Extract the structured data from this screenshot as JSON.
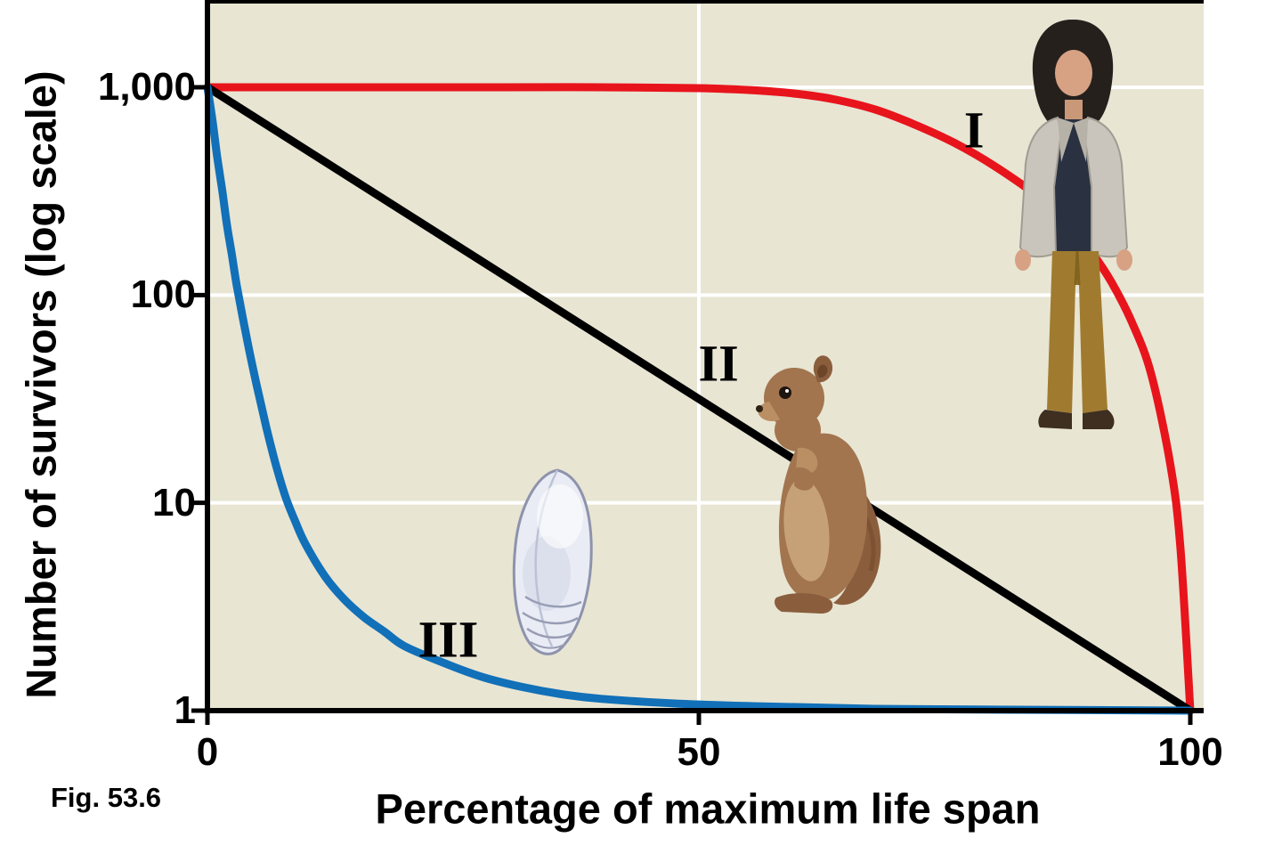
{
  "figure": {
    "caption": "Fig. 53.6"
  },
  "chart_data": {
    "type": "line",
    "title": "",
    "xlabel": "Percentage of maximum life span",
    "ylabel": "Number of survivors (log scale)",
    "y_scale": "log",
    "xlim": [
      0,
      100
    ],
    "ylim": [
      1,
      1000
    ],
    "grid": true,
    "grid_color": "#ffffff",
    "plot_background": "#e8e5d3",
    "x_ticks": [
      {
        "value": 0,
        "label": "0"
      },
      {
        "value": 50,
        "label": "50"
      },
      {
        "value": 100,
        "label": "100"
      }
    ],
    "y_ticks": [
      {
        "value": 1000,
        "label": "1,000"
      },
      {
        "value": 100,
        "label": "100"
      },
      {
        "value": 10,
        "label": "10"
      },
      {
        "value": 1,
        "label": "1"
      }
    ],
    "series": [
      {
        "name": "Type I",
        "organism": "human",
        "label": "I",
        "color": "#e8141c",
        "points": [
          [
            0,
            1000
          ],
          [
            15,
            1000
          ],
          [
            30,
            1000
          ],
          [
            40,
            1000
          ],
          [
            50,
            990
          ],
          [
            56,
            965
          ],
          [
            60,
            930
          ],
          [
            64,
            870
          ],
          [
            68,
            780
          ],
          [
            72,
            660
          ],
          [
            76,
            540
          ],
          [
            80,
            420
          ],
          [
            84,
            310
          ],
          [
            88,
            210
          ],
          [
            90,
            160
          ],
          [
            92,
            115
          ],
          [
            94,
            75
          ],
          [
            96,
            42
          ],
          [
            98,
            15
          ],
          [
            99,
            6
          ],
          [
            100,
            1
          ]
        ]
      },
      {
        "name": "Type II",
        "organism": "squirrel",
        "label": "II",
        "color": "#000000",
        "points": [
          [
            0,
            1000
          ],
          [
            100,
            1
          ]
        ]
      },
      {
        "name": "Type III",
        "organism": "oyster",
        "label": "III",
        "color": "#1170b8",
        "points": [
          [
            0,
            1000
          ],
          [
            0.5,
            700
          ],
          [
            1,
            460
          ],
          [
            1.5,
            320
          ],
          [
            2,
            215
          ],
          [
            2.5,
            155
          ],
          [
            3,
            110
          ],
          [
            4,
            62
          ],
          [
            5,
            37
          ],
          [
            6,
            23
          ],
          [
            7,
            15
          ],
          [
            8,
            10.5
          ],
          [
            9,
            8
          ],
          [
            10,
            6.3
          ],
          [
            12,
            4.4
          ],
          [
            14,
            3.4
          ],
          [
            16,
            2.8
          ],
          [
            18,
            2.4
          ],
          [
            20,
            2.05
          ],
          [
            24,
            1.7
          ],
          [
            28,
            1.45
          ],
          [
            32,
            1.3
          ],
          [
            36,
            1.2
          ],
          [
            40,
            1.14
          ],
          [
            48,
            1.08
          ],
          [
            56,
            1.05
          ],
          [
            68,
            1.02
          ],
          [
            82,
            1.01
          ],
          [
            100,
            1
          ]
        ]
      }
    ],
    "annotations": [
      {
        "label": "I",
        "x": 78,
        "y": 620
      },
      {
        "label": "II",
        "x": 52,
        "y": 47
      },
      {
        "label": "III",
        "x": 24.5,
        "y": 2.2
      }
    ]
  }
}
